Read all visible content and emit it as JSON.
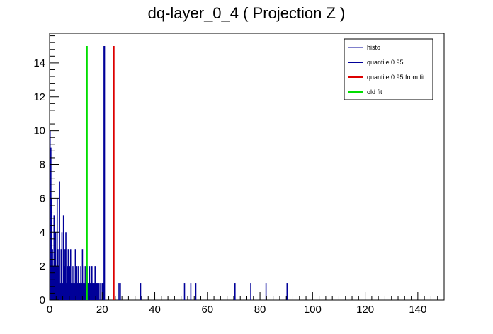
{
  "chart_data": {
    "type": "bar",
    "title": "dq-layer_0_4 ( Projection Z )",
    "xlabel": "",
    "ylabel": "",
    "xlim": [
      0,
      150
    ],
    "ylim": [
      0,
      15.75
    ],
    "x_ticks": [
      0,
      20,
      40,
      60,
      80,
      100,
      120,
      140
    ],
    "y_ticks": [
      0,
      2,
      4,
      6,
      8,
      10,
      12,
      14
    ],
    "grid": false,
    "legend_position": "top-right",
    "colors": {
      "histo": "#000099",
      "quantile": "#000099",
      "quantile_fit": "#dd0000",
      "old_fit": "#00dd00"
    },
    "legend": [
      {
        "label": "histo",
        "color": "#000099"
      },
      {
        "label": "quantile 0.95",
        "color": "#000099"
      },
      {
        "label": "quantile 0.95 from fit",
        "color": "#dd0000"
      },
      {
        "label": "old fit",
        "color": "#00dd00"
      }
    ],
    "series": [
      {
        "name": "histo",
        "x": [
          0.2,
          0.5,
          0.8,
          1.1,
          1.4,
          1.7,
          2.0,
          2.3,
          2.6,
          2.9,
          3.2,
          3.5,
          3.8,
          4.1,
          4.4,
          4.7,
          5.0,
          5.3,
          5.6,
          5.9,
          6.2,
          6.5,
          6.8,
          7.1,
          7.4,
          7.7,
          8.0,
          8.3,
          8.6,
          8.9,
          9.2,
          9.5,
          9.8,
          10.1,
          10.4,
          10.7,
          11.0,
          11.3,
          11.6,
          11.9,
          12.2,
          12.5,
          12.8,
          13.1,
          13.4,
          13.7,
          14.0,
          14.3,
          14.6,
          14.9,
          15.2,
          15.5,
          15.8,
          16.1,
          16.4,
          16.7,
          17.0,
          17.3,
          17.6,
          17.9,
          18.2,
          18.8,
          19.4,
          20.0,
          20.6,
          24.4,
          26.4,
          26.9,
          34.6,
          51.3,
          53.7,
          55.6,
          70.5,
          76.5,
          82.3,
          90.3
        ],
        "values": [
          10,
          9,
          6,
          3,
          2,
          5,
          3,
          4,
          2,
          6,
          3,
          2,
          7,
          1,
          3,
          4,
          1,
          5,
          2,
          3,
          4,
          1,
          2,
          3,
          1,
          2,
          3,
          1,
          2,
          1,
          2,
          1,
          3,
          1,
          2,
          1,
          2,
          1,
          1,
          2,
          1,
          3,
          1,
          2,
          1,
          2,
          1,
          2,
          1,
          1,
          2,
          1,
          1,
          2,
          1,
          1,
          1,
          2,
          1,
          1,
          1,
          1,
          1,
          1,
          1,
          1,
          1,
          1,
          1,
          1,
          1,
          1,
          1,
          1,
          1,
          1
        ]
      },
      {
        "name": "quantile 0.95",
        "x": [
          20.8
        ],
        "values": [
          15
        ]
      },
      {
        "name": "quantile 0.95 from fit",
        "x": [
          24.4
        ],
        "values": [
          15
        ]
      },
      {
        "name": "old fit",
        "x": [
          14.2
        ],
        "values": [
          15
        ]
      }
    ]
  }
}
